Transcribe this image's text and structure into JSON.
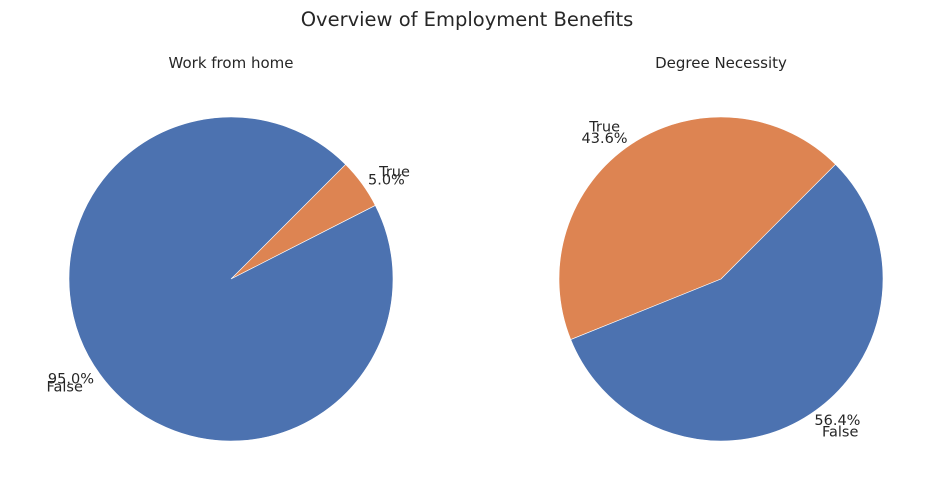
{
  "figure": {
    "title": "Overview of Employment Benefits"
  },
  "chart_data": [
    {
      "type": "pie",
      "title": "Work from home",
      "categories": [
        "False",
        "True"
      ],
      "values": [
        95.0,
        5.0
      ],
      "pct_labels": [
        "95.0%",
        "5.0%"
      ],
      "colors": [
        "#4c72b0",
        "#dd8452"
      ],
      "start_angle_deg": 45,
      "direction": "counterclockwise",
      "legend": "none"
    },
    {
      "type": "pie",
      "title": "Degree Necessity",
      "categories": [
        "False",
        "True"
      ],
      "values": [
        56.4,
        43.6
      ],
      "pct_labels": [
        "56.4%",
        "43.6%"
      ],
      "colors": [
        "#4c72b0",
        "#dd8452"
      ],
      "start_angle_deg": 45,
      "direction": "clockwise",
      "legend": "none"
    }
  ]
}
